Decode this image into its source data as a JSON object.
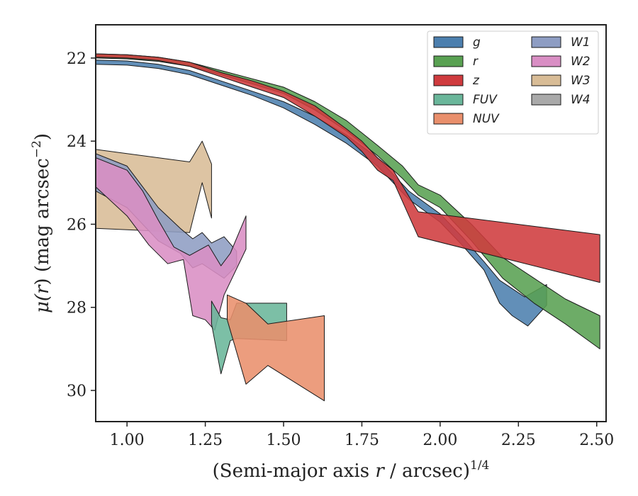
{
  "chart_data": {
    "type": "area",
    "xlabel_main": "(Semi-major axis ",
    "xlabel_var": "r",
    "xlabel_tail": " / arcsec)",
    "xlabel_sup": "1/4",
    "ylabel_main": "μ(",
    "ylabel_var": "r",
    "ylabel_tail": ") (mag arcsec",
    "ylabel_sup": "−2",
    "ylabel_close": ")",
    "xlim": [
      0.9,
      2.53
    ],
    "ylim": [
      30.75,
      21.2
    ],
    "y_inverted": true,
    "xticks": [
      1.0,
      1.25,
      1.5,
      1.75,
      2.0,
      2.25,
      2.5
    ],
    "xtick_labels": [
      "1.00",
      "1.25",
      "1.50",
      "1.75",
      "2.00",
      "2.25",
      "2.50"
    ],
    "yticks": [
      22,
      24,
      26,
      28,
      30
    ],
    "ytick_labels": [
      "22",
      "24",
      "26",
      "28",
      "30"
    ],
    "grid": false,
    "legend_position": "top-right",
    "legend_columns": 2,
    "series": [
      {
        "name": "g",
        "color": "#4c7fae",
        "upper": [
          [
            0.9,
            22.05
          ],
          [
            1.0,
            22.07
          ],
          [
            1.1,
            22.15
          ],
          [
            1.2,
            22.3
          ],
          [
            1.3,
            22.55
          ],
          [
            1.4,
            22.8
          ],
          [
            1.5,
            23.05
          ],
          [
            1.6,
            23.4
          ],
          [
            1.7,
            23.85
          ],
          [
            1.8,
            24.4
          ],
          [
            1.9,
            25.2
          ],
          [
            2.0,
            25.75
          ],
          [
            2.07,
            26.3
          ],
          [
            2.14,
            26.9
          ],
          [
            2.19,
            27.35
          ],
          [
            2.27,
            27.75
          ],
          [
            2.34,
            27.45
          ]
        ],
        "lower": [
          [
            0.9,
            22.15
          ],
          [
            1.0,
            22.17
          ],
          [
            1.1,
            22.25
          ],
          [
            1.2,
            22.4
          ],
          [
            1.3,
            22.65
          ],
          [
            1.4,
            22.9
          ],
          [
            1.5,
            23.2
          ],
          [
            1.6,
            23.6
          ],
          [
            1.7,
            24.05
          ],
          [
            1.8,
            24.6
          ],
          [
            1.9,
            25.4
          ],
          [
            2.0,
            25.95
          ],
          [
            2.07,
            26.5
          ],
          [
            2.14,
            27.1
          ],
          [
            2.19,
            27.9
          ],
          [
            2.23,
            28.2
          ],
          [
            2.28,
            28.45
          ],
          [
            2.34,
            27.95
          ]
        ]
      },
      {
        "name": "r",
        "color": "#59a152",
        "upper": [
          [
            0.9,
            21.9
          ],
          [
            1.0,
            21.92
          ],
          [
            1.1,
            21.98
          ],
          [
            1.2,
            22.1
          ],
          [
            1.3,
            22.3
          ],
          [
            1.4,
            22.5
          ],
          [
            1.5,
            22.7
          ],
          [
            1.6,
            23.05
          ],
          [
            1.7,
            23.5
          ],
          [
            1.8,
            24.1
          ],
          [
            1.88,
            24.6
          ],
          [
            1.93,
            25.05
          ],
          [
            2.0,
            25.3
          ],
          [
            2.1,
            26.0
          ],
          [
            2.2,
            26.8
          ],
          [
            2.3,
            27.3
          ],
          [
            2.4,
            27.8
          ],
          [
            2.51,
            28.2
          ]
        ],
        "lower": [
          [
            0.9,
            22.0
          ],
          [
            1.0,
            22.02
          ],
          [
            1.1,
            22.08
          ],
          [
            1.2,
            22.2
          ],
          [
            1.3,
            22.4
          ],
          [
            1.4,
            22.62
          ],
          [
            1.5,
            22.85
          ],
          [
            1.6,
            23.25
          ],
          [
            1.7,
            23.75
          ],
          [
            1.8,
            24.35
          ],
          [
            1.88,
            24.9
          ],
          [
            1.93,
            25.3
          ],
          [
            2.0,
            25.6
          ],
          [
            2.1,
            26.4
          ],
          [
            2.2,
            27.3
          ],
          [
            2.3,
            27.9
          ],
          [
            2.4,
            28.4
          ],
          [
            2.51,
            29.0
          ]
        ]
      },
      {
        "name": "z",
        "color": "#cf3b3e",
        "upper": [
          [
            0.9,
            21.9
          ],
          [
            1.0,
            21.92
          ],
          [
            1.1,
            21.98
          ],
          [
            1.2,
            22.1
          ],
          [
            1.3,
            22.35
          ],
          [
            1.4,
            22.55
          ],
          [
            1.5,
            22.8
          ],
          [
            1.6,
            23.15
          ],
          [
            1.7,
            23.7
          ],
          [
            1.75,
            24.0
          ],
          [
            1.8,
            24.4
          ],
          [
            1.85,
            24.7
          ],
          [
            1.93,
            25.7
          ],
          [
            2.51,
            26.25
          ]
        ],
        "lower": [
          [
            0.9,
            21.98
          ],
          [
            1.0,
            22.0
          ],
          [
            1.1,
            22.06
          ],
          [
            1.2,
            22.2
          ],
          [
            1.3,
            22.45
          ],
          [
            1.4,
            22.7
          ],
          [
            1.5,
            22.95
          ],
          [
            1.6,
            23.4
          ],
          [
            1.7,
            23.9
          ],
          [
            1.75,
            24.25
          ],
          [
            1.8,
            24.7
          ],
          [
            1.85,
            24.95
          ],
          [
            1.93,
            26.3
          ],
          [
            2.51,
            27.4
          ]
        ]
      },
      {
        "name": "FUV",
        "color": "#6ab69a",
        "upper": [
          [
            1.27,
            27.85
          ],
          [
            1.3,
            28.25
          ],
          [
            1.33,
            28.3
          ],
          [
            1.35,
            27.9
          ],
          [
            1.51,
            27.9
          ]
        ],
        "lower": [
          [
            1.27,
            28.4
          ],
          [
            1.3,
            29.6
          ],
          [
            1.33,
            28.8
          ],
          [
            1.35,
            28.75
          ],
          [
            1.51,
            28.8
          ]
        ]
      },
      {
        "name": "NUV",
        "color": "#e98f6c",
        "upper": [
          [
            1.32,
            27.7
          ],
          [
            1.38,
            27.9
          ],
          [
            1.45,
            28.4
          ],
          [
            1.63,
            28.2
          ]
        ],
        "lower": [
          [
            1.32,
            28.3
          ],
          [
            1.38,
            29.85
          ],
          [
            1.45,
            29.4
          ],
          [
            1.63,
            30.25
          ]
        ]
      },
      {
        "name": "W1",
        "color": "#8e9dc3",
        "upper": [
          [
            0.9,
            24.3
          ],
          [
            1.0,
            24.6
          ],
          [
            1.05,
            25.1
          ],
          [
            1.1,
            25.6
          ],
          [
            1.17,
            26.1
          ],
          [
            1.21,
            26.35
          ],
          [
            1.24,
            26.2
          ],
          [
            1.27,
            26.45
          ],
          [
            1.31,
            26.3
          ],
          [
            1.35,
            26.65
          ]
        ],
        "lower": [
          [
            0.9,
            25.2
          ],
          [
            1.0,
            25.6
          ],
          [
            1.05,
            26.0
          ],
          [
            1.1,
            26.4
          ],
          [
            1.17,
            26.7
          ],
          [
            1.21,
            27.05
          ],
          [
            1.24,
            26.95
          ],
          [
            1.27,
            27.1
          ],
          [
            1.31,
            27.3
          ],
          [
            1.35,
            27.0
          ]
        ]
      },
      {
        "name": "W2",
        "color": "#d98ec4",
        "upper": [
          [
            0.9,
            24.4
          ],
          [
            1.0,
            24.7
          ],
          [
            1.05,
            25.2
          ],
          [
            1.1,
            25.9
          ],
          [
            1.15,
            26.55
          ],
          [
            1.2,
            26.75
          ],
          [
            1.26,
            26.5
          ],
          [
            1.3,
            27.0
          ],
          [
            1.33,
            26.7
          ],
          [
            1.38,
            25.8
          ]
        ],
        "lower": [
          [
            0.9,
            25.1
          ],
          [
            1.0,
            25.8
          ],
          [
            1.07,
            26.5
          ],
          [
            1.13,
            26.95
          ],
          [
            1.18,
            26.85
          ],
          [
            1.21,
            28.2
          ],
          [
            1.25,
            28.3
          ],
          [
            1.28,
            28.55
          ],
          [
            1.31,
            27.7
          ],
          [
            1.38,
            26.6
          ]
        ]
      },
      {
        "name": "W3",
        "color": "#d8bc96",
        "upper": [
          [
            0.9,
            24.2
          ],
          [
            1.2,
            24.5
          ],
          [
            1.24,
            24.0
          ],
          [
            1.27,
            24.55
          ]
        ],
        "lower": [
          [
            0.9,
            26.1
          ],
          [
            1.2,
            26.2
          ],
          [
            1.24,
            25.0
          ],
          [
            1.27,
            25.85
          ]
        ]
      },
      {
        "name": "W4",
        "color": "#a9a9a9",
        "upper": [],
        "lower": []
      }
    ]
  }
}
